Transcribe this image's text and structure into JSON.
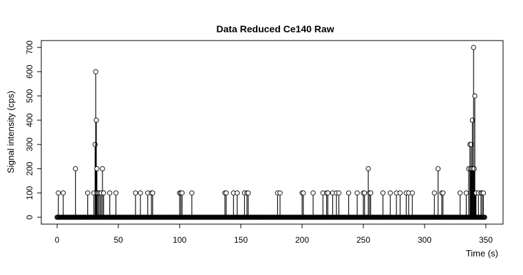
{
  "chart_data": {
    "type": "line",
    "title": "Data Reduced Ce140 Raw",
    "xlabel": "Time (s)",
    "ylabel": "Signal intensity (cps)",
    "xlim": [
      0,
      350
    ],
    "ylim": [
      0,
      700
    ],
    "x_ticks": [
      0,
      50,
      100,
      150,
      200,
      250,
      300,
      350
    ],
    "y_ticks": [
      0,
      100,
      200,
      300,
      400,
      500,
      600,
      700
    ],
    "grid": false,
    "legend": "none",
    "point_style": "open-circle",
    "color": "#000000",
    "series": [
      {
        "x": [
          1,
          5,
          15,
          25,
          30,
          31,
          31.5,
          32,
          32.5,
          33,
          34,
          35,
          36,
          37,
          38,
          43,
          48,
          64,
          68,
          74,
          77,
          78,
          100,
          101,
          102,
          110,
          137,
          138,
          144,
          147,
          153,
          155,
          156,
          180,
          182,
          200,
          201,
          209,
          217,
          220,
          221,
          225,
          228,
          230,
          238,
          245,
          250,
          251,
          254,
          255,
          256,
          266,
          272,
          277,
          280,
          285,
          287,
          290,
          308,
          311,
          314,
          315,
          329,
          334,
          336,
          337,
          337.5,
          338,
          338.5,
          339,
          339.5,
          340,
          340.5,
          341,
          341.5,
          342,
          344,
          346,
          347,
          348
        ],
        "y": [
          100,
          100,
          200,
          100,
          100,
          300,
          600,
          400,
          200,
          100,
          100,
          100,
          100,
          200,
          100,
          100,
          100,
          100,
          100,
          100,
          100,
          100,
          100,
          100,
          100,
          100,
          100,
          100,
          100,
          100,
          100,
          100,
          100,
          100,
          100,
          100,
          100,
          100,
          100,
          100,
          100,
          100,
          100,
          100,
          100,
          100,
          100,
          100,
          200,
          100,
          100,
          100,
          100,
          100,
          100,
          100,
          100,
          100,
          100,
          200,
          100,
          100,
          100,
          100,
          200,
          300,
          200,
          300,
          200,
          400,
          200,
          700,
          200,
          500,
          100,
          100,
          100,
          100,
          100,
          100
        ]
      }
    ]
  }
}
